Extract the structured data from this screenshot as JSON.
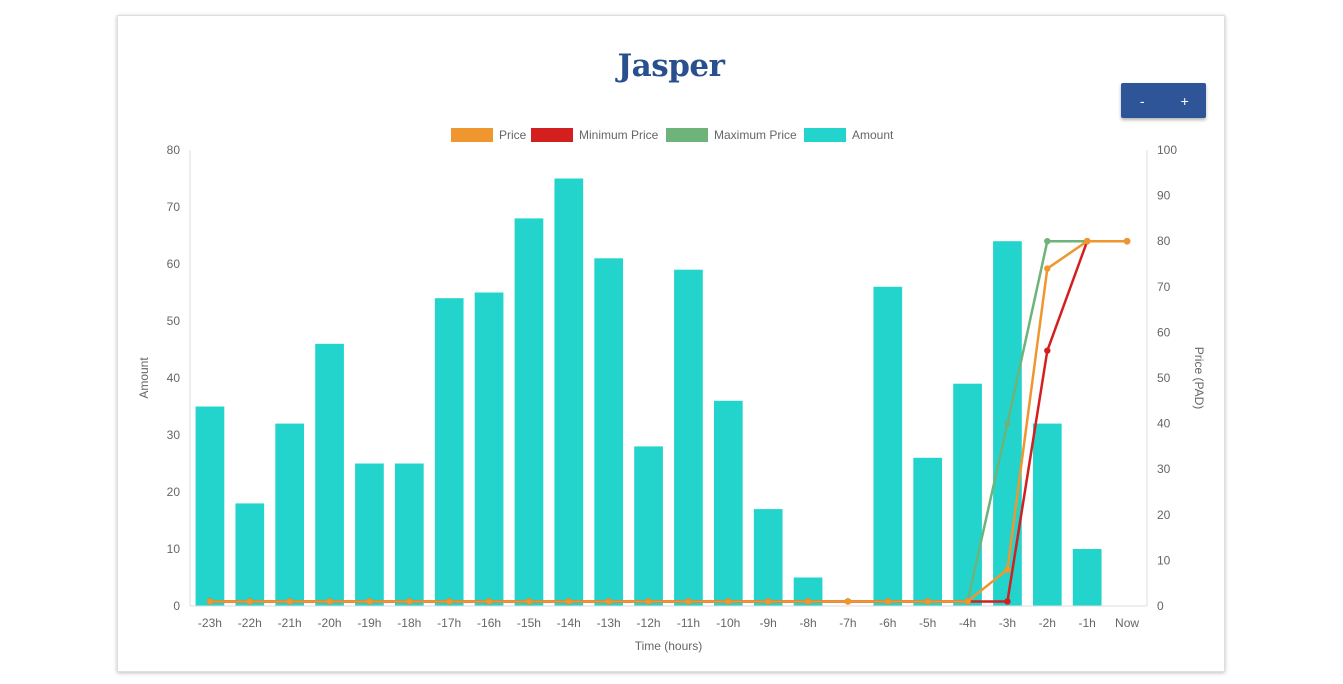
{
  "page": {
    "title": "Jasper",
    "zoom_out_label": "-",
    "zoom_in_label": "+"
  },
  "colors": {
    "title": "#2a4f8f",
    "button": "#2e5597",
    "amount": "#22d4cc",
    "price": "#f0962f",
    "min_price": "#d41f1f",
    "max_price": "#6db37a",
    "tick_text": "#666666",
    "axis_line": "#dddddd"
  },
  "chart_data": {
    "type": "bar",
    "title": "Jasper",
    "xlabel": "Time (hours)",
    "ylabel": "Amount",
    "y2label": "Price (PAD)",
    "ylim": [
      0,
      80
    ],
    "y2lim": [
      0,
      100
    ],
    "yticks": [
      "0",
      "10",
      "20",
      "30",
      "40",
      "50",
      "60",
      "70",
      "80"
    ],
    "y2ticks": [
      "0",
      "10",
      "20",
      "30",
      "40",
      "50",
      "60",
      "70",
      "80",
      "90",
      "100"
    ],
    "legend_position": "top",
    "grid": false,
    "categories": [
      "-23h",
      "-22h",
      "-21h",
      "-20h",
      "-19h",
      "-18h",
      "-17h",
      "-16h",
      "-15h",
      "-14h",
      "-13h",
      "-12h",
      "-11h",
      "-10h",
      "-9h",
      "-8h",
      "-7h",
      "-6h",
      "-5h",
      "-4h",
      "-3h",
      "-2h",
      "-1h",
      "Now"
    ],
    "series": [
      {
        "name": "Price",
        "type": "line",
        "axis": "right",
        "color": "#f0962f",
        "values": [
          1,
          1,
          1,
          1,
          1,
          1,
          1,
          1,
          1,
          1,
          1,
          1,
          1,
          1,
          1,
          1,
          1,
          1,
          1,
          1,
          8,
          74,
          80,
          80
        ]
      },
      {
        "name": "Minimum Price",
        "type": "line",
        "axis": "right",
        "color": "#d41f1f",
        "values": [
          1,
          1,
          1,
          1,
          1,
          1,
          1,
          1,
          1,
          1,
          1,
          1,
          1,
          1,
          1,
          1,
          1,
          1,
          1,
          1,
          1,
          56,
          80,
          80
        ]
      },
      {
        "name": "Maximum Price",
        "type": "line",
        "axis": "right",
        "color": "#6db37a",
        "values": [
          1,
          1,
          1,
          1,
          1,
          1,
          1,
          1,
          1,
          1,
          1,
          1,
          1,
          1,
          1,
          1,
          1,
          1,
          1,
          1,
          40,
          80,
          80,
          80
        ]
      },
      {
        "name": "Amount",
        "type": "bar",
        "axis": "left",
        "color": "#22d4cc",
        "values": [
          35,
          18,
          32,
          46,
          25,
          25,
          54,
          55,
          68,
          75,
          61,
          28,
          59,
          36,
          17,
          5,
          0,
          56,
          26,
          39,
          64,
          32,
          10,
          0
        ]
      }
    ]
  }
}
